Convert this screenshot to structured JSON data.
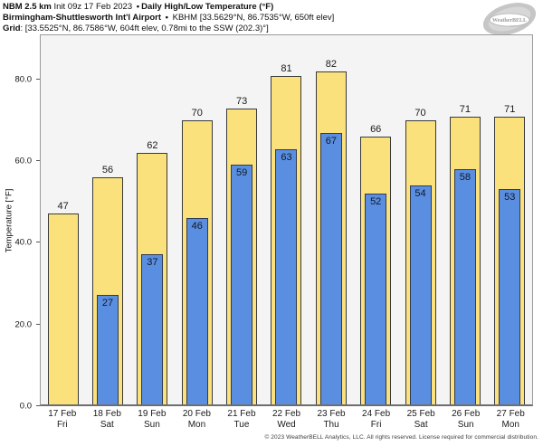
{
  "header": {
    "line1": {
      "bold1": "NBM 2.5 km",
      "regular1": " Init 09z 17 Feb 2023 ",
      "sep": "•",
      "bold2": "Daily High/Low Temperature (°F)"
    },
    "line2": {
      "bold1": "Birmingham-Shuttlesworth Int'l Airport",
      "sep": "•",
      "regular1": "KBHM [33.5629°N, 86.7535°W, 650ft elev]"
    },
    "line3": {
      "bold1": "Grid",
      "regular1": ": [33.5525°N, 86.7586°W, 604ft elev, 0.78mi to the SSW (202.3)°]"
    }
  },
  "logo": {
    "name": "weatherbell-logo",
    "text": "WeatherBELL",
    "subtext": "Analytics LLC"
  },
  "chart_data": {
    "type": "bar",
    "title": "Daily High/Low Temperature (°F)",
    "xlabel": "",
    "ylabel": "Temperature [°F]",
    "ylim": [
      0,
      91
    ],
    "yticks": [
      0,
      20,
      40,
      60,
      80
    ],
    "ytick_labels": [
      "0.0",
      "20.0",
      "40.0",
      "60.0",
      "80.0"
    ],
    "grid": false,
    "legend_position": "none",
    "categories": [
      {
        "date": "17 Feb",
        "day": "Fri"
      },
      {
        "date": "18 Feb",
        "day": "Sat"
      },
      {
        "date": "19 Feb",
        "day": "Sun"
      },
      {
        "date": "20 Feb",
        "day": "Mon"
      },
      {
        "date": "21 Feb",
        "day": "Tue"
      },
      {
        "date": "22 Feb",
        "day": "Wed"
      },
      {
        "date": "23 Feb",
        "day": "Thu"
      },
      {
        "date": "24 Feb",
        "day": "Fri"
      },
      {
        "date": "25 Feb",
        "day": "Sat"
      },
      {
        "date": "26 Feb",
        "day": "Sun"
      },
      {
        "date": "27 Feb",
        "day": "Mon"
      }
    ],
    "series": [
      {
        "name": "Daily High",
        "color": "#fae17c",
        "values": [
          47,
          56,
          62,
          70,
          73,
          81,
          82,
          66,
          70,
          71,
          71
        ]
      },
      {
        "name": "Daily Low",
        "color": "#5a8ee0",
        "values": [
          null,
          27,
          37,
          46,
          59,
          63,
          67,
          52,
          54,
          58,
          53
        ]
      }
    ],
    "colors": {
      "plot_background": "#f4f4f4",
      "high_bar": "#fae17c",
      "low_bar": "#5a8ee0",
      "axis_border": "#9a9a9a"
    }
  },
  "footer": {
    "copyright": "© 2023 WeatherBELL Analytics, LLC. All rights reserved. License required for commercial distribution."
  }
}
